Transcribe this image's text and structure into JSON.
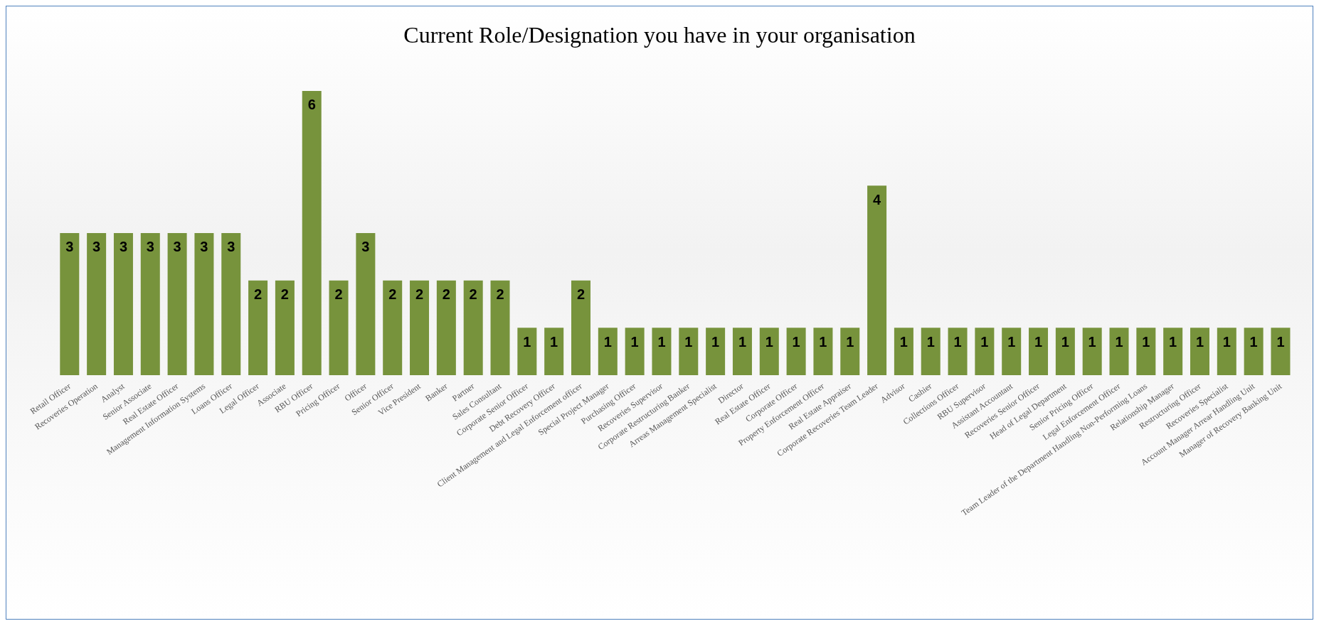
{
  "chart_data": {
    "type": "bar",
    "title": "Current Role/Designation you have in your organisation",
    "categories": [
      "Retail Officer",
      "Recoveries Operation",
      "Analyst",
      "Senior Associate",
      "Real Estate Officer",
      "Management Information Systems",
      "Loans Officer",
      "Legal Officer",
      "Associate",
      "RBU Officer",
      "Pricing Officer",
      "Officer",
      "Senior Officer",
      "Vice President",
      "Banker",
      "Partner",
      "Sales Consultant",
      "Corporate Senior Officer",
      "Debt Recovery Officer",
      "Client Management and Legal Enforcement officer",
      "Special Project Manager",
      "Purchasing Officer",
      "Recoveries Supervisor",
      "Corporate Restructuring Banker",
      "Arreas Management Specialist",
      "Director",
      "Real Estate Officer",
      "Corporate Officer",
      "Property Enforcement Officer",
      "Real Estate Appraiser",
      "Corporate Recoveries Team Leader",
      "Advisor",
      "Cashier",
      "Collections Officer",
      "RBU Supervisor",
      "Assistant Accountant",
      "Recoveries Senior Officer",
      "Head of Legal Department",
      "Senior Pricing Officer",
      "Legal Enforcement Officer",
      "Team Leader of the Department Handling Non-Performing Loans",
      "Relationship Manager",
      "Restructuring Officer",
      "Recoveries Specialist",
      "Account Manager Arrear Handling Unit",
      "Manager of Recovery Banking Unit"
    ],
    "values": [
      3,
      3,
      3,
      3,
      3,
      3,
      3,
      2,
      2,
      6,
      2,
      3,
      2,
      2,
      2,
      2,
      2,
      1,
      1,
      2,
      1,
      1,
      1,
      1,
      1,
      1,
      1,
      1,
      1,
      1,
      4,
      1,
      1,
      1,
      1,
      1,
      1,
      1,
      1,
      1,
      1,
      1,
      1,
      1,
      1,
      1
    ],
    "color": "#77933c",
    "data_labels": true,
    "grid": false
  }
}
